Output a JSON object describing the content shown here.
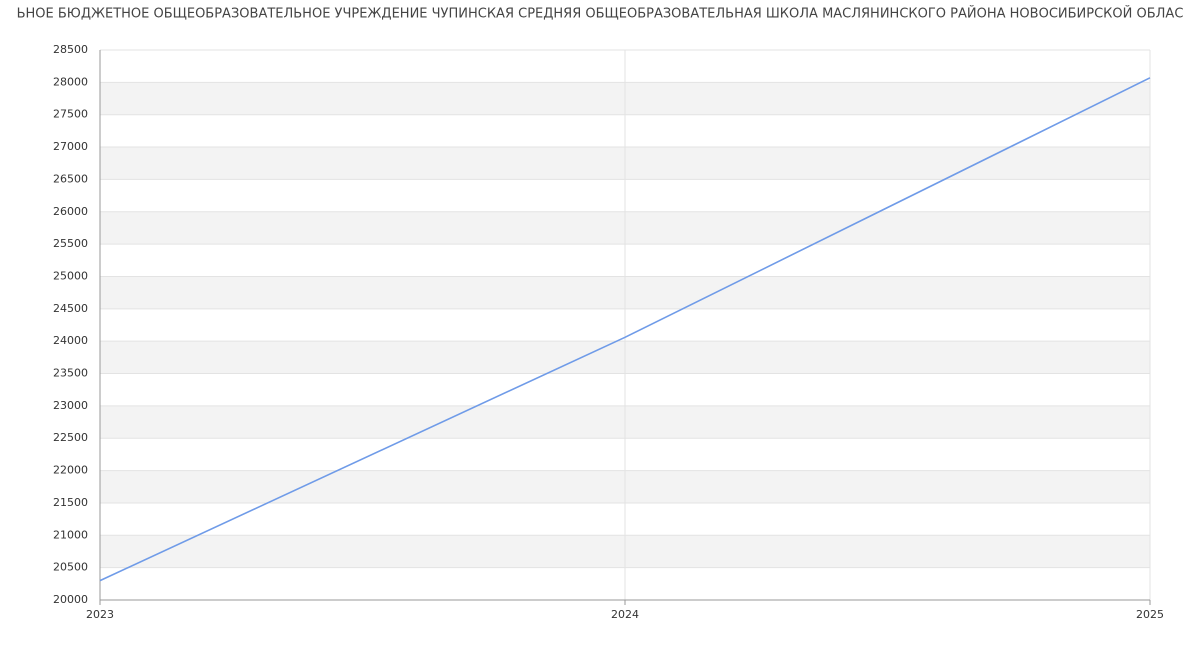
{
  "chart_data": {
    "type": "line",
    "title": "ЬНОЕ БЮДЖЕТНОЕ ОБЩЕОБРАЗОВАТЕЛЬНОЕ УЧРЕЖДЕНИЕ ЧУПИНСКАЯ СРЕДНЯЯ ОБЩЕОБРАЗОВАТЕЛЬНАЯ ШКОЛА МАСЛЯНИНСКОГО РАЙОНА НОВОСИБИРСКОЙ ОБЛАС",
    "x": [
      2023,
      2024,
      2025
    ],
    "series": [
      {
        "color": "#6f9be8",
        "values": [
          20300,
          24060,
          28070
        ]
      }
    ],
    "xlim": [
      2023,
      2025
    ],
    "xticks": [
      2023,
      2024,
      2025
    ],
    "ylim": [
      20000,
      28500
    ],
    "yticks": [
      20000,
      20500,
      21000,
      21500,
      22000,
      22500,
      23000,
      23500,
      24000,
      24500,
      25000,
      25500,
      26000,
      26500,
      27000,
      27500,
      28000,
      28500
    ],
    "grid": true
  }
}
